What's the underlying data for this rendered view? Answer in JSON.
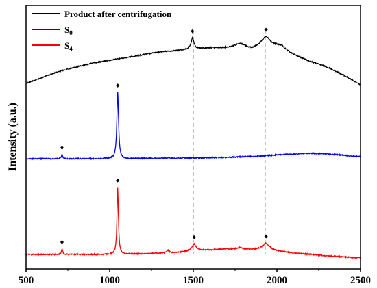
{
  "chart_data": {
    "type": "line",
    "title": "",
    "xlabel": "",
    "ylabel": "Intensity (a.u.)",
    "xlim": [
      500,
      2500
    ],
    "x_ticks": [
      500,
      1000,
      1500,
      2000,
      2500
    ],
    "y_ticks_shown": false,
    "grid": false,
    "legend_position": "top-left",
    "legend": [
      {
        "main": "Product after centrifugation",
        "sub": ""
      },
      {
        "main": "S",
        "sub": "0"
      },
      {
        "main": "S",
        "sub": "4"
      }
    ],
    "reference_lines_x": [
      1500,
      1930
    ],
    "series": [
      {
        "key": "product",
        "color": "#000000",
        "baseline": [
          [
            500,
            122
          ],
          [
            700,
            104
          ],
          [
            900,
            92
          ],
          [
            1050,
            86
          ],
          [
            1100,
            84
          ],
          [
            1200,
            80
          ],
          [
            1300,
            76
          ],
          [
            1400,
            74
          ],
          [
            1480,
            72
          ],
          [
            1600,
            70
          ],
          [
            1700,
            70
          ],
          [
            1780,
            69
          ],
          [
            1850,
            72
          ],
          [
            1900,
            68
          ],
          [
            2000,
            68
          ],
          [
            2100,
            80
          ],
          [
            2200,
            90
          ],
          [
            2300,
            98
          ],
          [
            2400,
            110
          ],
          [
            2500,
            124
          ]
        ],
        "peaks": [
          [
            1495,
            16,
            10
          ],
          [
            1780,
            5,
            40
          ],
          [
            1935,
            14,
            30
          ],
          [
            2030,
            4,
            20
          ]
        ],
        "markers": [
          1495,
          1935
        ]
      },
      {
        "key": "s0",
        "color": "#0000ff",
        "baseline": [
          [
            500,
            232
          ],
          [
            1000,
            232
          ],
          [
            1100,
            232
          ],
          [
            1300,
            231
          ],
          [
            1500,
            231
          ],
          [
            1700,
            230
          ],
          [
            1900,
            228
          ],
          [
            2100,
            225
          ],
          [
            2200,
            224
          ],
          [
            2300,
            225
          ],
          [
            2400,
            227
          ],
          [
            2500,
            229
          ]
        ],
        "peaks": [
          [
            715,
            6,
            5
          ],
          [
            1048,
            97,
            6
          ]
        ],
        "markers": [
          715,
          1048
        ]
      },
      {
        "key": "s4",
        "color": "#ff0000",
        "baseline": [
          [
            500,
            372
          ],
          [
            1000,
            372
          ],
          [
            1200,
            371
          ],
          [
            1400,
            369
          ],
          [
            1550,
            366
          ],
          [
            1700,
            364
          ],
          [
            1800,
            365
          ],
          [
            1900,
            365
          ],
          [
            2000,
            367
          ],
          [
            2100,
            370
          ],
          [
            2300,
            374
          ],
          [
            2500,
            377
          ]
        ],
        "peaks": [
          [
            715,
            8,
            5
          ],
          [
            1048,
            98,
            5
          ],
          [
            1348,
            4,
            8
          ],
          [
            1505,
            10,
            15
          ],
          [
            1780,
            3,
            20
          ],
          [
            1935,
            10,
            25
          ]
        ],
        "markers": [
          715,
          1048,
          1505,
          1935
        ]
      }
    ]
  }
}
